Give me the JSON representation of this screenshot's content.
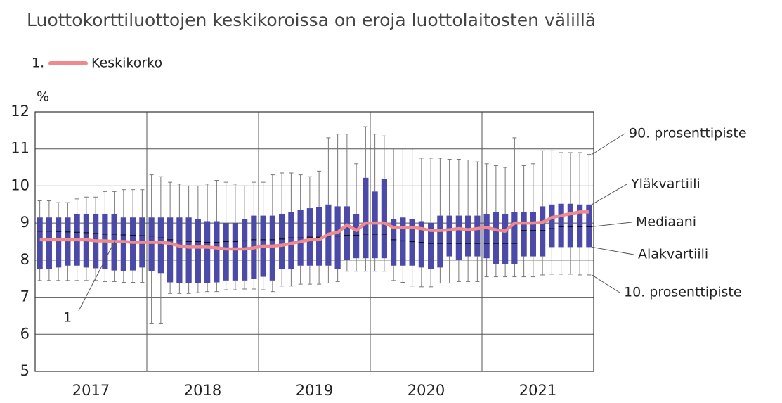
{
  "chart_data": {
    "type": "box",
    "title": "Luottokorttiluottojen keskikoroissa on eroja luottolaitosten välillä",
    "ylabel": "%",
    "legend_number": "1.",
    "annotation": "1",
    "ylim": [
      5,
      12
    ],
    "yticks": [
      5,
      6,
      7,
      8,
      9,
      10,
      11,
      12
    ],
    "grid": true,
    "years": [
      "2017",
      "2018",
      "2019",
      "2020",
      "2021"
    ],
    "categories": [
      null,
      null,
      null,
      null,
      null,
      null,
      null,
      null,
      null,
      null,
      null,
      null,
      null,
      null,
      null,
      null,
      null,
      null,
      null,
      null,
      null,
      null,
      null,
      null,
      null,
      null,
      null,
      null,
      null,
      null,
      null,
      null,
      null,
      null,
      null,
      null,
      null,
      null,
      null,
      null,
      null,
      null,
      null,
      null,
      null,
      null,
      null,
      null,
      null,
      null,
      null,
      null,
      null,
      null,
      null,
      null,
      null,
      null,
      null,
      null
    ],
    "box_color": "#4b4aa8",
    "box_labels": {
      "p90": "90. prosenttipiste",
      "q3": "Yläkvartiili",
      "median": "Mediaani",
      "q1": "Alakvartiili",
      "p10": "10. prosenttipiste"
    },
    "boxes": {
      "p90": [
        9.6,
        9.6,
        9.55,
        9.55,
        9.65,
        9.7,
        9.7,
        9.85,
        9.85,
        9.9,
        9.9,
        9.9,
        10.3,
        10.25,
        10.1,
        10.05,
        10.0,
        10.0,
        10.05,
        10.15,
        10.1,
        10.05,
        10.0,
        10.1,
        10.1,
        10.3,
        10.35,
        10.35,
        10.3,
        10.25,
        10.4,
        11.3,
        11.4,
        11.4,
        10.6,
        11.6,
        11.4,
        11.35,
        11.0,
        11.0,
        11.0,
        10.75,
        10.75,
        10.75,
        10.72,
        10.72,
        10.7,
        10.65,
        10.6,
        10.55,
        10.5,
        11.3,
        10.55,
        10.6,
        10.95,
        10.95,
        10.9,
        10.9,
        10.9,
        10.85
      ],
      "q3": [
        9.15,
        9.15,
        9.15,
        9.15,
        9.25,
        9.25,
        9.25,
        9.25,
        9.25,
        9.15,
        9.15,
        9.15,
        9.15,
        9.15,
        9.15,
        9.15,
        9.15,
        9.1,
        9.05,
        9.05,
        9.0,
        9.0,
        9.1,
        9.2,
        9.2,
        9.2,
        9.25,
        9.3,
        9.35,
        9.4,
        9.42,
        9.5,
        9.45,
        9.45,
        9.25,
        10.22,
        9.85,
        10.18,
        9.1,
        9.15,
        9.1,
        9.05,
        9.0,
        9.2,
        9.2,
        9.2,
        9.2,
        9.2,
        9.25,
        9.3,
        9.25,
        9.3,
        9.3,
        9.3,
        9.45,
        9.5,
        9.52,
        9.52,
        9.5,
        9.5
      ],
      "median": [
        8.78,
        8.78,
        8.77,
        8.76,
        8.75,
        8.74,
        8.72,
        8.7,
        8.7,
        8.68,
        8.67,
        8.66,
        8.65,
        8.6,
        8.55,
        8.52,
        8.5,
        8.5,
        8.48,
        8.48,
        8.5,
        8.5,
        8.52,
        8.55,
        8.55,
        8.55,
        8.57,
        8.6,
        8.6,
        8.62,
        8.62,
        8.65,
        8.65,
        8.67,
        8.67,
        8.7,
        8.7,
        8.7,
        8.55,
        8.52,
        8.5,
        8.48,
        8.45,
        8.45,
        8.45,
        8.45,
        8.45,
        8.45,
        8.45,
        8.45,
        8.45,
        8.45,
        8.8,
        8.8,
        8.8,
        8.85,
        8.9,
        8.9,
        8.9,
        8.9
      ],
      "q1": [
        7.75,
        7.75,
        7.8,
        7.85,
        7.85,
        7.8,
        7.78,
        7.75,
        7.72,
        7.7,
        7.72,
        7.8,
        7.7,
        7.65,
        7.4,
        7.38,
        7.38,
        7.38,
        7.38,
        7.4,
        7.45,
        7.45,
        7.45,
        7.5,
        7.55,
        7.45,
        7.75,
        7.75,
        7.85,
        7.85,
        7.85,
        7.85,
        7.75,
        8.0,
        8.05,
        8.05,
        8.05,
        8.05,
        7.85,
        7.85,
        7.85,
        7.8,
        7.75,
        7.8,
        8.1,
        8.0,
        8.1,
        8.1,
        8.05,
        7.9,
        7.9,
        7.9,
        8.1,
        8.1,
        8.1,
        8.35,
        8.35,
        8.35,
        8.35,
        8.35
      ],
      "p10": [
        7.45,
        7.45,
        7.45,
        7.45,
        7.45,
        7.45,
        7.45,
        7.42,
        7.42,
        7.4,
        7.4,
        7.4,
        6.3,
        6.3,
        7.1,
        7.1,
        7.1,
        7.12,
        7.15,
        7.15,
        7.2,
        7.2,
        7.22,
        7.22,
        7.2,
        7.15,
        7.3,
        7.3,
        7.35,
        7.35,
        7.35,
        7.38,
        7.42,
        7.7,
        7.7,
        7.7,
        7.7,
        7.7,
        7.45,
        7.4,
        7.3,
        7.28,
        7.28,
        7.38,
        7.38,
        7.42,
        7.42,
        7.42,
        7.55,
        7.55,
        7.55,
        7.55,
        7.55,
        7.55,
        7.6,
        7.62,
        7.62,
        7.62,
        7.6,
        7.6
      ]
    },
    "series": [
      {
        "name": "Keskikorko",
        "color": "#f0898c",
        "values": [
          8.55,
          8.55,
          8.55,
          8.55,
          8.55,
          8.55,
          8.52,
          8.52,
          8.5,
          8.5,
          8.48,
          8.48,
          8.48,
          8.48,
          8.45,
          8.38,
          8.35,
          8.35,
          8.35,
          8.33,
          8.3,
          8.3,
          8.3,
          8.33,
          8.38,
          8.38,
          8.4,
          8.45,
          8.5,
          8.55,
          8.55,
          8.7,
          8.75,
          8.95,
          8.8,
          9.0,
          9.0,
          9.0,
          8.88,
          8.88,
          8.88,
          8.85,
          8.8,
          8.8,
          8.82,
          8.85,
          8.82,
          8.85,
          8.88,
          8.82,
          8.78,
          9.0,
          9.0,
          9.0,
          9.02,
          9.15,
          9.2,
          9.25,
          9.3,
          9.3
        ]
      }
    ]
  }
}
